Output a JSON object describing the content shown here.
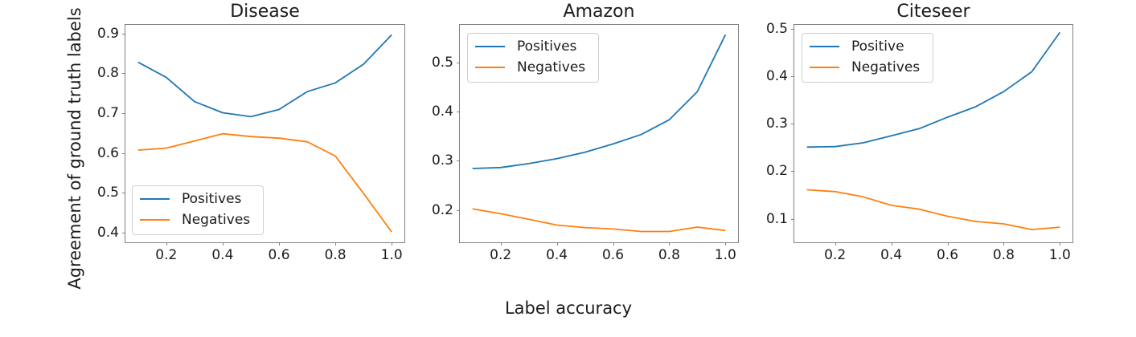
{
  "figure": {
    "ylabel": "Agreement of ground truth labels",
    "xlabel": "Label accuracy",
    "background": "#ffffff",
    "text_color": "#1c1c1c",
    "axis_color": "#808080"
  },
  "chart_data": [
    {
      "type": "line",
      "title": "Disease",
      "x": [
        0.1,
        0.2,
        0.3,
        0.4,
        0.5,
        0.6,
        0.7,
        0.8,
        0.9,
        1.0
      ],
      "series": [
        {
          "name": "Positives",
          "color": "#1f77b4",
          "values": [
            0.828,
            0.79,
            0.729,
            0.701,
            0.691,
            0.709,
            0.754,
            0.776,
            0.823,
            0.897
          ]
        },
        {
          "name": "Negatives",
          "color": "#ff7f0e",
          "values": [
            0.607,
            0.612,
            0.63,
            0.648,
            0.641,
            0.637,
            0.628,
            0.592,
            0.498,
            0.401
          ]
        }
      ],
      "xticks": [
        0.2,
        0.4,
        0.6,
        0.8,
        1.0
      ],
      "yticks": [
        0.4,
        0.5,
        0.6,
        0.7,
        0.8,
        0.9
      ],
      "xlim": [
        0.055,
        1.045
      ],
      "ylim": [
        0.375,
        0.922
      ],
      "grid": false,
      "legend_loc": "lower-left"
    },
    {
      "type": "line",
      "title": "Amazon",
      "x": [
        0.1,
        0.2,
        0.3,
        0.4,
        0.5,
        0.6,
        0.7,
        0.8,
        0.9,
        1.0
      ],
      "series": [
        {
          "name": "Positives",
          "color": "#1f77b4",
          "values": [
            0.284,
            0.286,
            0.294,
            0.304,
            0.317,
            0.334,
            0.353,
            0.383,
            0.44,
            0.556
          ]
        },
        {
          "name": "Negatives",
          "color": "#ff7f0e",
          "values": [
            0.202,
            0.192,
            0.181,
            0.169,
            0.164,
            0.161,
            0.156,
            0.156,
            0.165,
            0.158
          ]
        }
      ],
      "xticks": [
        0.2,
        0.4,
        0.6,
        0.8,
        1.0
      ],
      "yticks": [
        0.2,
        0.3,
        0.4,
        0.5
      ],
      "xlim": [
        0.055,
        1.045
      ],
      "ylim": [
        0.134,
        0.576
      ],
      "grid": false,
      "legend_loc": "upper-left"
    },
    {
      "type": "line",
      "title": "Citeseer",
      "x": [
        0.1,
        0.2,
        0.3,
        0.4,
        0.5,
        0.6,
        0.7,
        0.8,
        0.9,
        1.0
      ],
      "series": [
        {
          "name": "Positive",
          "color": "#1f77b4",
          "values": [
            0.251,
            0.252,
            0.26,
            0.275,
            0.29,
            0.314,
            0.336,
            0.368,
            0.41,
            0.493
          ]
        },
        {
          "name": "Negatives",
          "color": "#ff7f0e",
          "values": [
            0.161,
            0.157,
            0.146,
            0.128,
            0.12,
            0.105,
            0.094,
            0.089,
            0.077,
            0.082
          ]
        }
      ],
      "xticks": [
        0.2,
        0.4,
        0.6,
        0.8,
        1.0
      ],
      "yticks": [
        0.1,
        0.2,
        0.3,
        0.4,
        0.5
      ],
      "xlim": [
        0.055,
        1.045
      ],
      "ylim": [
        0.05,
        0.509
      ],
      "grid": false,
      "legend_loc": "upper-left"
    }
  ]
}
